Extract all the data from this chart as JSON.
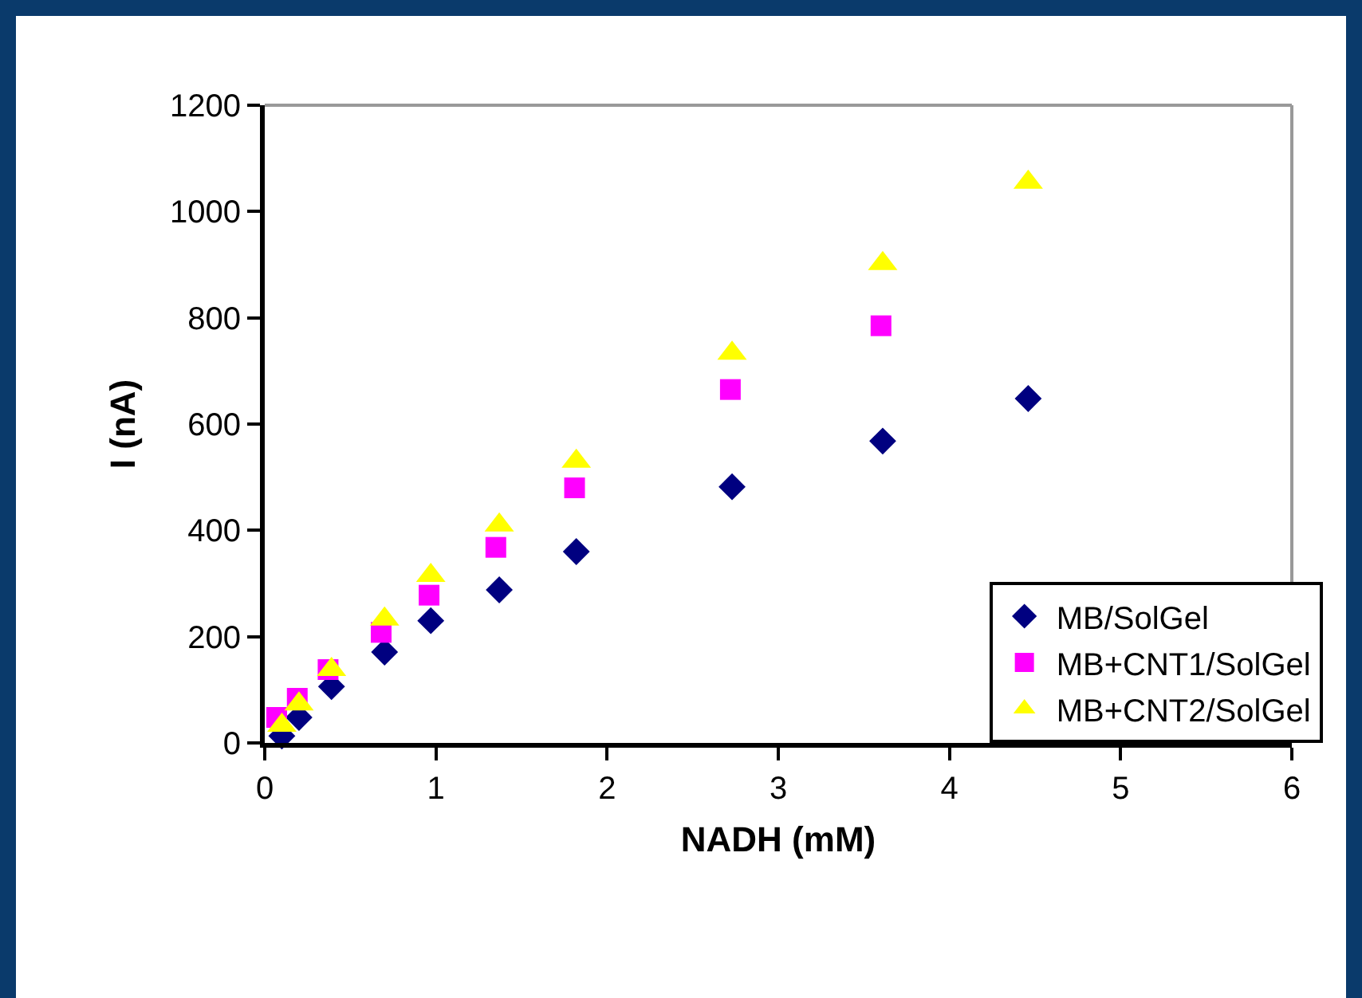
{
  "chart_data": {
    "type": "scatter",
    "xlabel": "NADH (mM)",
    "ylabel": "I (nA)",
    "x": [
      0.1,
      0.2,
      0.39,
      0.7,
      0.97,
      1.37,
      1.82,
      2.73,
      3.61,
      4.46
    ],
    "series": [
      {
        "name": "MB/SolGel",
        "color": "#000080",
        "marker": "diamond",
        "values": [
          13,
          48,
          106,
          171,
          230,
          288,
          360,
          482,
          568,
          648
        ]
      },
      {
        "name": "MB+CNT1/SolGel",
        "color": "#ff00ff",
        "marker": "square",
        "x": [
          0.07,
          0.19,
          0.37,
          0.68,
          0.96,
          1.35,
          1.81,
          2.72,
          3.6
        ],
        "values": [
          48,
          84,
          138,
          208,
          278,
          368,
          480,
          665,
          785
        ]
      },
      {
        "name": "MB+CNT2/SolGel",
        "color": "#ffff00",
        "marker": "triangle",
        "values": [
          33,
          73,
          138,
          233,
          315,
          410,
          530,
          733,
          902,
          1055
        ]
      }
    ],
    "xlim": [
      0,
      6
    ],
    "xticks": [
      0,
      1,
      2,
      3,
      4,
      5,
      6
    ],
    "ylim": [
      0,
      1200
    ],
    "yticks": [
      0,
      200,
      400,
      600,
      800,
      1000,
      1200
    ],
    "grid": false,
    "legend": "bottom right"
  }
}
